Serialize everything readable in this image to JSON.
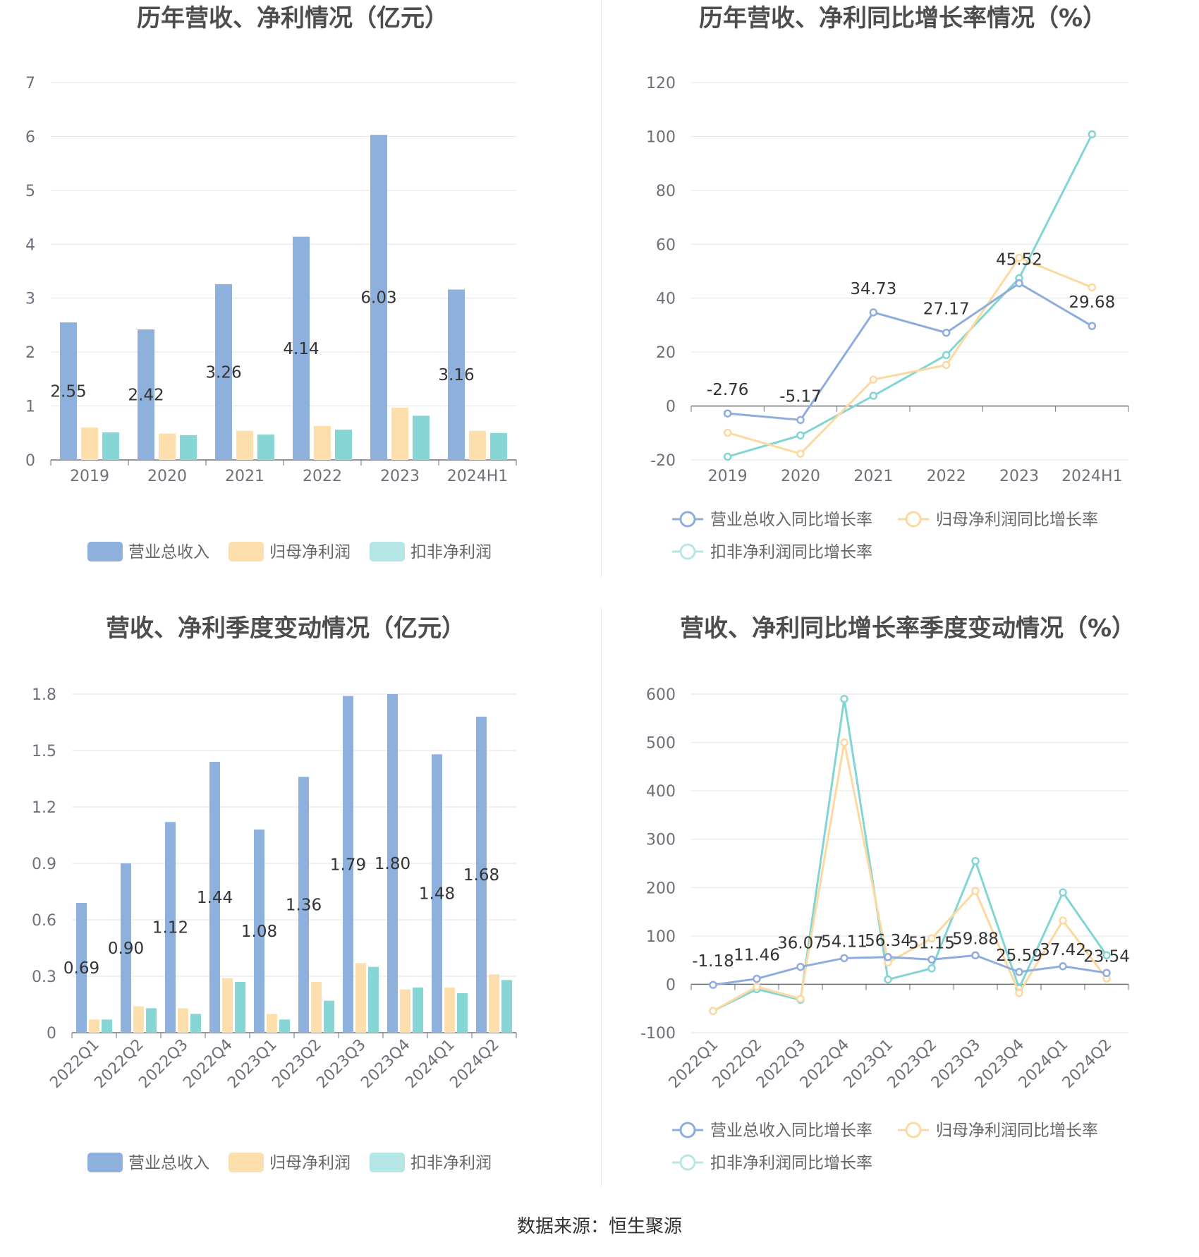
{
  "colors": {
    "revenue": "#8eb0dc",
    "net_profit": "#fddfad",
    "deducted_profit": "#86d6d6",
    "grid": "#e0e3ea",
    "axis": "#6e7079",
    "revenue_line": "#8eaddc",
    "net_line": "#fcd9a0",
    "deducted_line": "#83d5d4"
  },
  "footer": "数据来源：恒生聚源",
  "chart_data": [
    {
      "id": "annual-amounts",
      "type": "bar",
      "title": "历年营收、净利情况（亿元）",
      "categories": [
        "2019",
        "2020",
        "2021",
        "2022",
        "2023",
        "2024H1"
      ],
      "ylim": [
        0,
        7
      ],
      "yticks": [
        "0",
        "1",
        "2",
        "3",
        "4",
        "5",
        "6",
        "7"
      ],
      "series": [
        {
          "name": "营业总收入",
          "values": [
            2.55,
            2.42,
            3.26,
            4.14,
            6.03,
            3.16
          ],
          "labels": [
            "2.55",
            "2.42",
            "3.26",
            "4.14",
            "6.03",
            "3.16"
          ]
        },
        {
          "name": "归母净利润",
          "values": [
            0.6,
            0.49,
            0.54,
            0.63,
            0.97,
            0.54
          ]
        },
        {
          "name": "扣非净利润",
          "values": [
            0.51,
            0.46,
            0.47,
            0.56,
            0.82,
            0.5
          ]
        }
      ],
      "grid": true,
      "legend": "bottom"
    },
    {
      "id": "annual-growth",
      "type": "line",
      "title": "历年营收、净利同比增长率情况（%）",
      "categories": [
        "2019",
        "2020",
        "2021",
        "2022",
        "2023",
        "2024H1"
      ],
      "ylim": [
        -20,
        120
      ],
      "yticks": [
        "-20",
        "0",
        "20",
        "40",
        "60",
        "80",
        "100",
        "120"
      ],
      "series": [
        {
          "name": "营业总收入同比增长率",
          "values": [
            -2.76,
            -5.17,
            34.73,
            27.17,
            45.52,
            29.68
          ],
          "labels": [
            "-2.76",
            "-5.17",
            "34.73",
            "27.17",
            "45.52",
            "29.68"
          ]
        },
        {
          "name": "归母净利润同比增长率",
          "values": [
            -9.9,
            -17.7,
            9.8,
            15.2,
            55.0,
            44.0
          ]
        },
        {
          "name": "扣非净利润同比增长率",
          "values": [
            -18.8,
            -10.9,
            3.8,
            18.9,
            47.4,
            100.8
          ]
        }
      ],
      "grid": true,
      "legend": "bottom"
    },
    {
      "id": "quarterly-amounts",
      "type": "bar",
      "title": "营收、净利季度变动情况（亿元）",
      "categories": [
        "2022Q1",
        "2022Q2",
        "2022Q3",
        "2022Q4",
        "2023Q1",
        "2023Q2",
        "2023Q3",
        "2023Q4",
        "2024Q1",
        "2024Q2"
      ],
      "ylim": [
        0,
        1.8
      ],
      "yticks": [
        "0",
        "0.3",
        "0.6",
        "0.9",
        "1.2",
        "1.5",
        "1.8"
      ],
      "series": [
        {
          "name": "营业总收入",
          "values": [
            0.69,
            0.9,
            1.12,
            1.44,
            1.08,
            1.36,
            1.79,
            1.8,
            1.48,
            1.68
          ],
          "labels": [
            "0.69",
            "0.90",
            "1.12",
            "1.44",
            "1.08",
            "1.36",
            "1.79",
            "1.80",
            "1.48",
            "1.68"
          ]
        },
        {
          "name": "归母净利润",
          "values": [
            0.07,
            0.14,
            0.13,
            0.29,
            0.1,
            0.27,
            0.37,
            0.23,
            0.24,
            0.31
          ]
        },
        {
          "name": "扣非净利润",
          "values": [
            0.07,
            0.13,
            0.1,
            0.27,
            0.07,
            0.17,
            0.35,
            0.24,
            0.21,
            0.28
          ]
        }
      ],
      "grid": true,
      "legend": "bottom"
    },
    {
      "id": "quarterly-growth",
      "type": "line",
      "title": "营收、净利同比增长率季度变动情况（%）",
      "categories": [
        "2022Q1",
        "2022Q2",
        "2022Q3",
        "2022Q4",
        "2023Q1",
        "2023Q2",
        "2023Q3",
        "2023Q4",
        "2024Q1",
        "2024Q2"
      ],
      "ylim": [
        -100,
        600
      ],
      "yticks": [
        "-100",
        "0",
        "100",
        "200",
        "300",
        "400",
        "500",
        "600"
      ],
      "series": [
        {
          "name": "营业总收入同比增长率",
          "values": [
            -1.18,
            11.46,
            36.07,
            54.11,
            56.34,
            51.15,
            59.88,
            25.59,
            37.42,
            23.54
          ],
          "labels": [
            "-1.18",
            "11.46",
            "36.07",
            "54.11",
            "56.34",
            "51.15",
            "59.88",
            "25.59",
            "37.42",
            "23.54"
          ]
        },
        {
          "name": "归母净利润同比增长率",
          "values": [
            -55,
            -5,
            -30,
            500,
            45,
            95,
            193,
            -18,
            132,
            12
          ]
        },
        {
          "name": "扣非净利润同比增长率",
          "values": [
            -55,
            -10,
            -32,
            590,
            10,
            33,
            255,
            -8,
            190,
            60
          ]
        }
      ],
      "grid": true,
      "legend": "bottom"
    }
  ]
}
